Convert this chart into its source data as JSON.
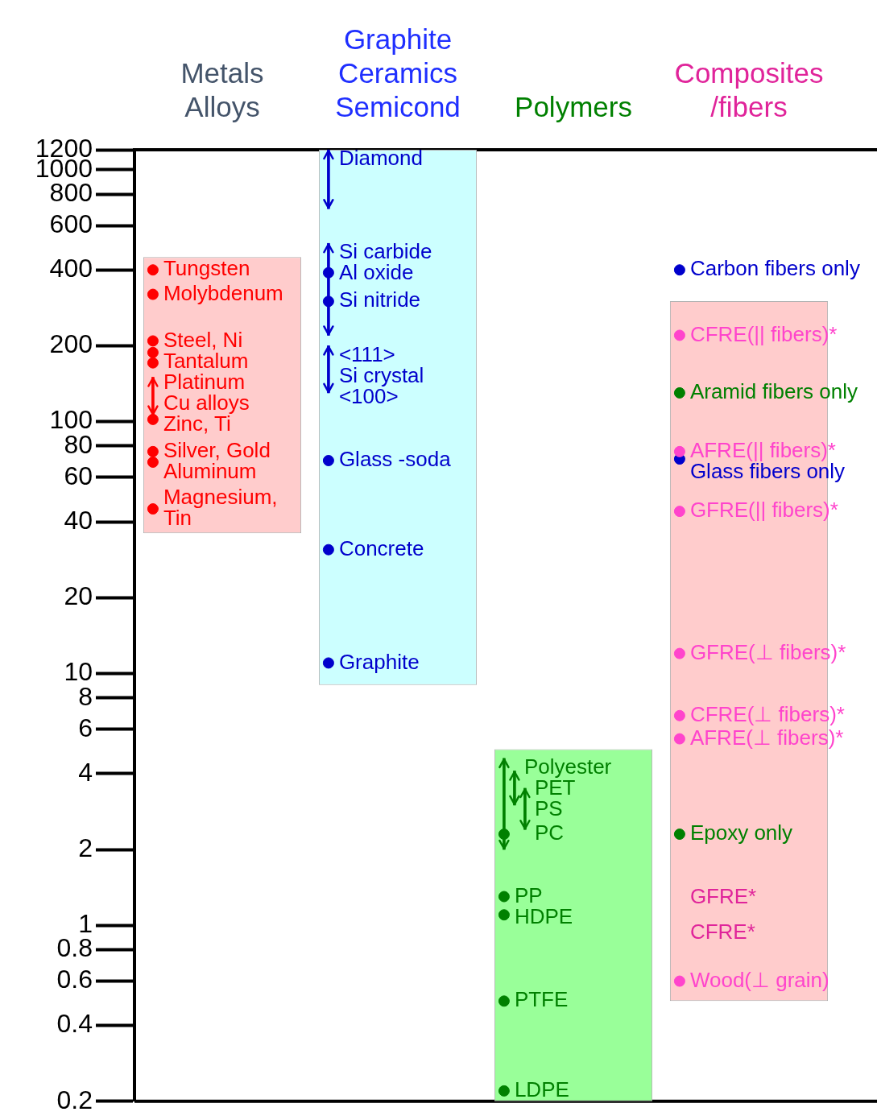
{
  "chart_data": {
    "type": "scatter",
    "categories": [
      "Metals\nAlloys",
      "Graphite\nCeramics\nSemicond",
      "Polymers",
      "Composites\n/fibers"
    ],
    "ylim": [
      0.2,
      1200
    ],
    "yticks": [
      0.2,
      0.4,
      0.6,
      0.8,
      1,
      2,
      4,
      6,
      8,
      10,
      20,
      40,
      60,
      80,
      100,
      200,
      400,
      600,
      800,
      1000,
      1200
    ],
    "log": "y",
    "grid": false,
    "legend": "top left",
    "marker": "circle",
    "series": [
      {
        "type": "bar",
        "colors": [
          "#ffcccc",
          "#ccffff",
          "#99ff99",
          "#ffcccc"
        ],
        "base": [
          36,
          9,
          0.2,
          0.5
        ],
        "values": [
          414,
          1191,
          4.8,
          300
        ]
      },
      {
        "name": "Tungsten",
        "color": "#ff0000",
        "x": [
          "Metals\nAlloys"
        ],
        "values": [
          400
        ]
      },
      {
        "name": "Molybdenum",
        "color": "#ff0000",
        "x": [
          "Metals\nAlloys"
        ],
        "values": [
          320
        ]
      },
      {
        "name": "Steel, Ni",
        "color": "#ff0000",
        "x": [
          "Metals\nAlloys"
        ],
        "values": [
          209
        ]
      },
      {
        "name": "Tantalum",
        "color": "#ff0000",
        "x": [
          "Metals\nAlloys"
        ],
        "values": [
          188
        ]
      },
      {
        "name": "Platinum",
        "color": "#ff0000",
        "x": [
          "Metals\nAlloys"
        ],
        "values": [
          171
        ]
      },
      {
        "type": "bar",
        "name": "Cu alloys",
        "color": "#ff0000",
        "x": [
          "Metals\nAlloys"
        ],
        "base": [
          106
        ],
        "values": [
          44
        ]
      },
      {
        "name": "Zinc, Ti",
        "color": "#ff0000",
        "x": [
          "Metals\nAlloys"
        ],
        "values": [
          102
        ]
      },
      {
        "name": "Silver, Gold",
        "color": "#ff0000",
        "x": [
          "Metals\nAlloys"
        ],
        "values": [
          76
        ]
      },
      {
        "name": "Aluminum",
        "color": "#ff0000",
        "x": [
          "Metals\nAlloys"
        ],
        "values": [
          69
        ]
      },
      {
        "name": "Magnesium,\nTin",
        "color": "#ff0000",
        "x": [
          "Metals\nAlloys"
        ],
        "values": [
          45
        ]
      },
      {
        "type": "bar",
        "name": "Diamond",
        "color": "#0000cc",
        "x": [
          "Graphite\nCeramics\nSemicond"
        ],
        "base": [
          700
        ],
        "values": [
          500
        ]
      },
      {
        "type": "bar",
        "name": "Si carbide",
        "color": "#0000cc",
        "x": [
          "Graphite\nCeramics\nSemicond"
        ],
        "base": [
          220
        ],
        "values": [
          290
        ]
      },
      {
        "name": "Al oxide",
        "color": "#0000cc",
        "x": [
          "Graphite\nCeramics\nSemicond"
        ],
        "values": [
          390
        ]
      },
      {
        "name": "Si nitride",
        "color": "#0000cc",
        "x": [
          "Graphite\nCeramics\nSemicond"
        ],
        "values": [
          300
        ]
      },
      {
        "type": "bar",
        "name": "<111>\nSi crystal\n<100>",
        "color": "#0000cc",
        "x": [
          "Graphite\nCeramics\nSemicond"
        ],
        "base": [
          130
        ],
        "values": [
          70
        ]
      },
      {
        "name": "Glass -soda",
        "color": "#0000cc",
        "x": [
          "Graphite\nCeramics\nSemicond"
        ],
        "values": [
          70
        ]
      },
      {
        "name": "Concrete",
        "color": "#0000cc",
        "x": [
          "Graphite\nCeramics\nSemicond"
        ],
        "values": [
          31
        ]
      },
      {
        "name": "Graphite",
        "color": "#0000cc",
        "x": [
          "Graphite\nCeramics\nSemicond"
        ],
        "values": [
          11
        ]
      },
      {
        "type": "bar",
        "name": "Polyester",
        "color": "#008000",
        "x": [
          "Polymers"
        ],
        "base": [
          2.0
        ],
        "values": [
          2.6
        ]
      },
      {
        "type": "bar",
        "name": "PET",
        "color": "#008000",
        "x": [
          "Polymers"
        ],
        "base": [
          3.0
        ],
        "values": [
          1.1
        ]
      },
      {
        "type": "bar",
        "name": "PS",
        "color": "#008000",
        "x": [
          "Polymers"
        ],
        "base": [
          2.4
        ],
        "values": [
          1.1
        ]
      },
      {
        "name": "PC",
        "color": "#008000",
        "x": [
          "Polymers"
        ],
        "values": [
          2.3
        ]
      },
      {
        "name": "PP",
        "color": "#008000",
        "x": [
          "Polymers"
        ],
        "values": [
          1.3
        ]
      },
      {
        "name": "HDPE",
        "color": "#008000",
        "x": [
          "Polymers"
        ],
        "values": [
          1.1
        ]
      },
      {
        "name": "PTFE",
        "color": "#008000",
        "x": [
          "Polymers"
        ],
        "values": [
          0.5
        ]
      },
      {
        "name": "LDPE",
        "color": "#008000",
        "x": [
          "Polymers"
        ],
        "values": [
          0.22
        ]
      },
      {
        "name": "Carbon fibers only",
        "color": "#0000cc",
        "x": [
          "Composites\n/fibers"
        ],
        "values": [
          400
        ]
      },
      {
        "name": "CFRE(|| fibers)*",
        "color": "#ff44cc",
        "x": [
          "Composites\n/fibers"
        ],
        "values": [
          220
        ]
      },
      {
        "name": "Aramid fibers only",
        "color": "#008000",
        "x": [
          "Composites\n/fibers"
        ],
        "values": [
          130
        ]
      },
      {
        "name": "AFRE(|| fibers)*",
        "color": "#ff44cc",
        "x": [
          "Composites\n/fibers"
        ],
        "values": [
          76
        ]
      },
      {
        "name": "Glass fibers only",
        "color": "#0000cc",
        "x": [
          "Composites\n/fibers"
        ],
        "values": [
          71
        ]
      },
      {
        "name": "GFRE(|| fibers)*",
        "color": "#ff44cc",
        "x": [
          "Composites\n/fibers"
        ],
        "values": [
          44
        ]
      },
      {
        "name": "GFRE(⊥ fibers)*",
        "color": "#ff44cc",
        "x": [
          "Composites\n/fibers"
        ],
        "values": [
          12
        ]
      },
      {
        "name": "CFRE(⊥ fibers)*",
        "color": "#ff44cc",
        "x": [
          "Composites\n/fibers"
        ],
        "values": [
          6.8
        ]
      },
      {
        "name": "AFRE(⊥ fibers)*",
        "color": "#ff44cc",
        "x": [
          "Composites\n/fibers"
        ],
        "values": [
          5.5
        ]
      },
      {
        "name": "Epoxy only",
        "color": "#008000",
        "x": [
          "Composites\n/fibers"
        ],
        "values": [
          2.3
        ]
      },
      {
        "name": "Wood(⊥ grain)",
        "color": "#ff44cc",
        "x": [
          "Composites\n/fibers"
        ],
        "values": [
          0.6
        ]
      }
    ],
    "annotations": [
      "GFRE*",
      "CFRE*"
    ]
  }
}
